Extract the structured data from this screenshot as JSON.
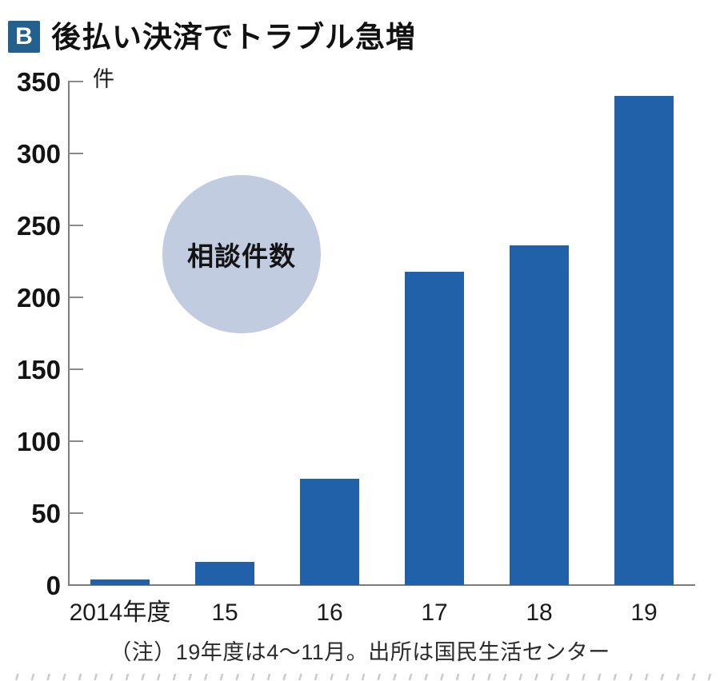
{
  "header": {
    "badge": "B",
    "title": "後払い決済でトラブル急増"
  },
  "chart_data": {
    "type": "bar",
    "title": "後払い決済でトラブル急増",
    "categories": [
      "2014年度",
      "15",
      "16",
      "17",
      "18",
      "19"
    ],
    "values": [
      4,
      16,
      74,
      218,
      236,
      340
    ],
    "series_label": "相談件数",
    "unit_label": "件",
    "xlabel": "",
    "ylabel": "件",
    "y_ticks": [
      0,
      50,
      100,
      150,
      200,
      250,
      300,
      350
    ],
    "ylim": [
      0,
      350
    ],
    "grid": false,
    "legend_position": "bubble-inside-plot",
    "bar_color": "#2161aa",
    "bubble_color": "#c2cce0",
    "axis_color": "#7d7d7d"
  },
  "note": "（注）19年度は4～11月。出所は国民生活センター"
}
